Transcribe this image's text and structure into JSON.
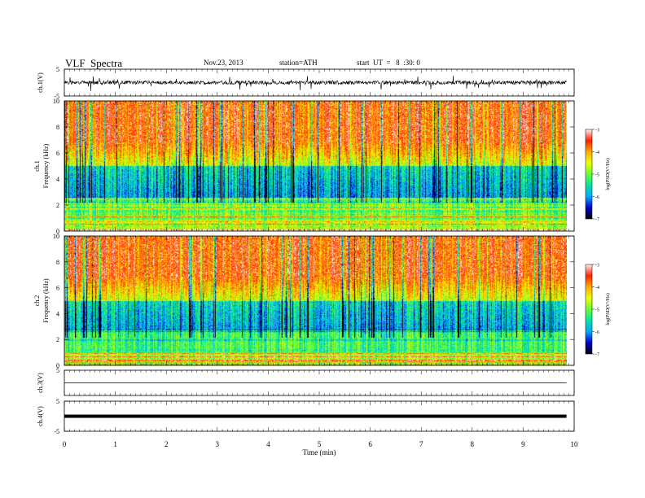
{
  "header": {
    "title": "VLF  Spectra",
    "date": "Nov.23, 2013",
    "station": "station=ATH",
    "start": "start  UT  =   8  :30: 0"
  },
  "chart_data": [
    {
      "type": "line",
      "panel": "ch1-waveform",
      "ylabel": "ch.1(V)",
      "ylim": [
        -5,
        5
      ],
      "yticks": [
        "5",
        "-5"
      ],
      "baseline": 0
    },
    {
      "type": "heatmap",
      "panel": "ch1-spectrogram",
      "ylabel_line1": "ch.1",
      "ylabel_line2": "Frequency  (kHz)",
      "ylim": [
        0,
        10
      ],
      "yticks": [
        "10",
        "8",
        "6",
        "4",
        "2",
        "0"
      ],
      "colorbar": {
        "label": "log(PSD(V²/Hz)",
        "range": [
          -7,
          -3
        ],
        "ticks": [
          "-3",
          "-4",
          "-5",
          "-6",
          "-7"
        ],
        "colors": [
          "#000000",
          "#0000cc",
          "#00aaff",
          "#00e6a0",
          "#66ff33",
          "#eeff00",
          "#ffaa00",
          "#ff2200",
          "#ffeeee"
        ]
      }
    },
    {
      "type": "heatmap",
      "panel": "ch2-spectrogram",
      "ylabel_line1": "ch.2",
      "ylabel_line2": "Frequency  (kHz)",
      "ylim": [
        0,
        10
      ],
      "yticks": [
        "10",
        "8",
        "6",
        "4",
        "2",
        "0"
      ],
      "colorbar": {
        "label": "log(PSD(V²/Hz)",
        "range": [
          -7,
          -3
        ],
        "ticks": [
          "-3",
          "-4",
          "-5",
          "-6",
          "-7"
        ]
      }
    },
    {
      "type": "line",
      "panel": "ch3-waveform",
      "ylabel": "ch.3(V)",
      "ylim": [
        -5,
        5
      ],
      "yticks": [
        "5"
      ],
      "baseline": 0
    },
    {
      "type": "line",
      "panel": "ch4-waveform",
      "ylabel": "ch.4(V)",
      "ylim": [
        -5,
        5
      ],
      "yticks": [
        "5",
        "-5"
      ],
      "baseline": 0
    }
  ],
  "xaxis": {
    "label": "Time  (min)",
    "range": [
      0,
      10
    ],
    "ticks": [
      "0",
      "1",
      "2",
      "3",
      "4",
      "5",
      "6",
      "7",
      "8",
      "9",
      "10"
    ],
    "data_end": 9.85
  }
}
